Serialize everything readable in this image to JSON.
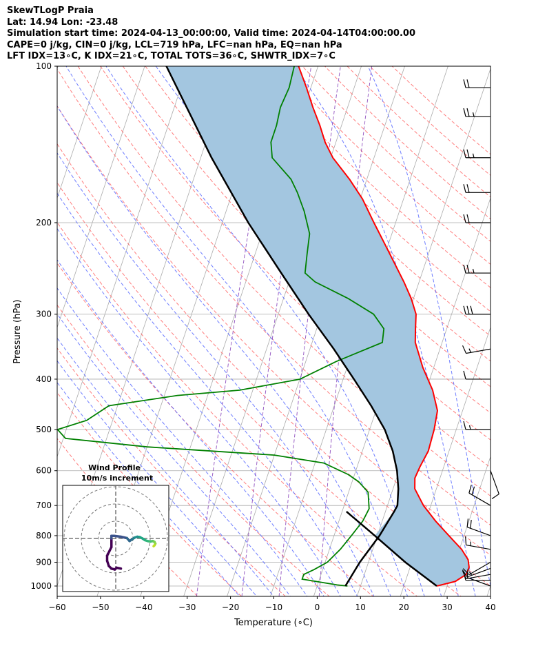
{
  "header": {
    "line1": "SkewTLogP Praia",
    "line2": "Lat: 14.94   Lon: -23.48",
    "line3": "Simulation start time: 2024-04-13_00:00:00, Valid time: 2024-04-14T04:00:00.00",
    "line4": "CAPE=0 j/kg, CIN=0 j/kg, LCL=719 hPa, LFC=nan hPa, EQ=nan hPa",
    "line5": "LFT IDX=13∘C, K IDX=21∘C, TOTAL TOTS=36∘C, SHWTR_IDX=7∘C"
  },
  "colors": {
    "temperature": "#ff0000",
    "dewpoint": "#008000",
    "parcel": "#000000",
    "shade": "#a3c6e0",
    "dry_adiabat": "#ff6666",
    "moist_adiabat": "#5566ff",
    "mixing_ratio": "#8844bb",
    "isotherm": "#aaaaaa"
  },
  "chart_data": {
    "type": "skewt-logp",
    "xlabel": "Temperature (∘C)",
    "ylabel": "Pressure (hPa)",
    "xlim": [
      -60,
      40
    ],
    "ylim": [
      1050,
      100
    ],
    "x_ticks": [
      -60,
      -50,
      -40,
      -30,
      -20,
      -10,
      0,
      10,
      20,
      30,
      40
    ],
    "y_ticks": [
      100,
      200,
      300,
      400,
      500,
      600,
      700,
      800,
      900,
      1000
    ],
    "grid": true,
    "skew_deg_per_decade": 40.2,
    "temperature": {
      "name": "Temperature",
      "points": [
        [
          1000,
          27.6
        ],
        [
          980,
          31.5
        ],
        [
          950,
          33.5
        ],
        [
          920,
          33.6
        ],
        [
          890,
          32.8
        ],
        [
          850,
          30.5
        ],
        [
          800,
          26.5
        ],
        [
          750,
          22.3
        ],
        [
          700,
          18.3
        ],
        [
          650,
          15.0
        ],
        [
          620,
          14.2
        ],
        [
          590,
          14.5
        ],
        [
          550,
          15.2
        ],
        [
          500,
          14.9
        ],
        [
          460,
          14.2
        ],
        [
          420,
          11.5
        ],
        [
          380,
          7.5
        ],
        [
          340,
          3.8
        ],
        [
          320,
          2.8
        ],
        [
          300,
          1.8
        ],
        [
          280,
          -0.5
        ],
        [
          260,
          -3.5
        ],
        [
          240,
          -7.0
        ],
        [
          220,
          -10.8
        ],
        [
          200,
          -15.0
        ],
        [
          180,
          -19.5
        ],
        [
          165,
          -24.0
        ],
        [
          150,
          -29.5
        ],
        [
          140,
          -32.5
        ],
        [
          130,
          -35.0
        ],
        [
          120,
          -38.0
        ],
        [
          110,
          -41.0
        ],
        [
          100,
          -44.5
        ]
      ]
    },
    "dewpoint": {
      "name": "Dewpoint",
      "points": [
        [
          1000,
          7.0
        ],
        [
          995,
          4.5
        ],
        [
          970,
          -4.0
        ],
        [
          950,
          -4.0
        ],
        [
          930,
          -2.0
        ],
        [
          900,
          0.5
        ],
        [
          850,
          2.5
        ],
        [
          800,
          4.0
        ],
        [
          750,
          5.5
        ],
        [
          710,
          6.0
        ],
        [
          660,
          4.5
        ],
        [
          630,
          1.5
        ],
        [
          610,
          -1.5
        ],
        [
          580,
          -8.0
        ],
        [
          560,
          -20.0
        ],
        [
          540,
          -50.0
        ],
        [
          520,
          -69.5
        ],
        [
          500,
          -72.0
        ],
        [
          480,
          -66.0
        ],
        [
          450,
          -62.0
        ],
        [
          430,
          -47.0
        ],
        [
          420,
          -33.0
        ],
        [
          400,
          -20.0
        ],
        [
          370,
          -13.0
        ],
        [
          340,
          -3.8
        ],
        [
          320,
          -4.5
        ],
        [
          300,
          -8.0
        ],
        [
          280,
          -15.0
        ],
        [
          260,
          -24.0
        ],
        [
          250,
          -27.0
        ],
        [
          230,
          -28.0
        ],
        [
          210,
          -29.0
        ],
        [
          190,
          -32.0
        ],
        [
          175,
          -35.0
        ],
        [
          165,
          -37.5
        ],
        [
          150,
          -43.5
        ],
        [
          140,
          -45.0
        ],
        [
          130,
          -45.0
        ],
        [
          120,
          -45.5
        ],
        [
          110,
          -45.0
        ],
        [
          100,
          -45.5
        ]
      ]
    },
    "parcel": {
      "name": "Parcel",
      "points": [
        [
          1000,
          6.5
        ],
        [
          900,
          8.0
        ],
        [
          800,
          10.5
        ],
        [
          719,
          12.0
        ],
        [
          700,
          12.3
        ],
        [
          650,
          11.2
        ],
        [
          600,
          9.5
        ],
        [
          550,
          7.0
        ],
        [
          500,
          3.5
        ],
        [
          450,
          -1.5
        ],
        [
          400,
          -7.5
        ],
        [
          350,
          -14.5
        ],
        [
          300,
          -23.0
        ],
        [
          250,
          -32.5
        ],
        [
          200,
          -44.0
        ],
        [
          150,
          -57.5
        ],
        [
          100,
          -75.0
        ]
      ]
    },
    "parcel_dry_leg": {
      "name": "Surface parcel",
      "points": [
        [
          1000,
          27.6
        ],
        [
          900,
          18.5
        ],
        [
          800,
          9.4
        ],
        [
          719,
          1.0
        ]
      ]
    },
    "wind_barbs": {
      "units": "knots",
      "values": [
        [
          1000,
          290,
          10
        ],
        [
          975,
          270,
          10
        ],
        [
          950,
          260,
          10
        ],
        [
          925,
          250,
          15
        ],
        [
          900,
          240,
          10
        ],
        [
          850,
          280,
          15
        ],
        [
          800,
          290,
          20
        ],
        [
          700,
          300,
          20
        ],
        [
          600,
          160,
          10
        ],
        [
          500,
          270,
          15
        ],
        [
          400,
          270,
          10
        ],
        [
          350,
          260,
          15
        ],
        [
          300,
          270,
          30
        ],
        [
          250,
          270,
          25
        ],
        [
          200,
          270,
          20
        ],
        [
          175,
          270,
          20
        ],
        [
          150,
          270,
          25
        ],
        [
          125,
          270,
          25
        ],
        [
          110,
          270,
          20
        ]
      ]
    },
    "inset": {
      "title": "Wind Profile",
      "subtitle": "10m/s increment",
      "ring_increment_ms": 10,
      "ring_count": 3,
      "hodograph_uv_ms": [
        [
          3,
          -17.5
        ],
        [
          0.5,
          -17
        ],
        [
          -0.5,
          -18
        ],
        [
          -2.5,
          -17.5
        ],
        [
          -4,
          -16
        ],
        [
          -5,
          -13
        ],
        [
          -5,
          -10
        ],
        [
          -3.5,
          -7
        ],
        [
          -2.5,
          -5
        ],
        [
          -2.5,
          -3
        ],
        [
          -2.5,
          0
        ],
        [
          -2.5,
          1.5
        ],
        [
          -1,
          1.5
        ],
        [
          3,
          1
        ],
        [
          6.5,
          0.2
        ],
        [
          8,
          -1.5
        ],
        [
          9.5,
          -0.5
        ],
        [
          11,
          0.5
        ],
        [
          12.5,
          1
        ],
        [
          14,
          0.8
        ],
        [
          15.5,
          0
        ],
        [
          17,
          -1
        ],
        [
          18.5,
          -1.5
        ],
        [
          20,
          -1.8
        ],
        [
          21.5,
          -1.5
        ],
        [
          22.5,
          -2
        ],
        [
          23,
          -3
        ],
        [
          22.5,
          -4
        ],
        [
          22,
          -4.5
        ]
      ],
      "segment_colors": [
        "#440154",
        "#440154",
        "#440154",
        "#440154",
        "#440154",
        "#440154",
        "#440154",
        "#440154",
        "#440154",
        "#440154",
        "#3b528b",
        "#3b528b",
        "#3b528b",
        "#3b528b",
        "#31688e",
        "#31688e",
        "#2a788e",
        "#21908d",
        "#21908d",
        "#21a685",
        "#22a884",
        "#2db27d",
        "#35b779",
        "#44bf70",
        "#5ec962",
        "#7ad151",
        "#95d840",
        "#bddf26",
        "#dde318"
      ]
    }
  }
}
